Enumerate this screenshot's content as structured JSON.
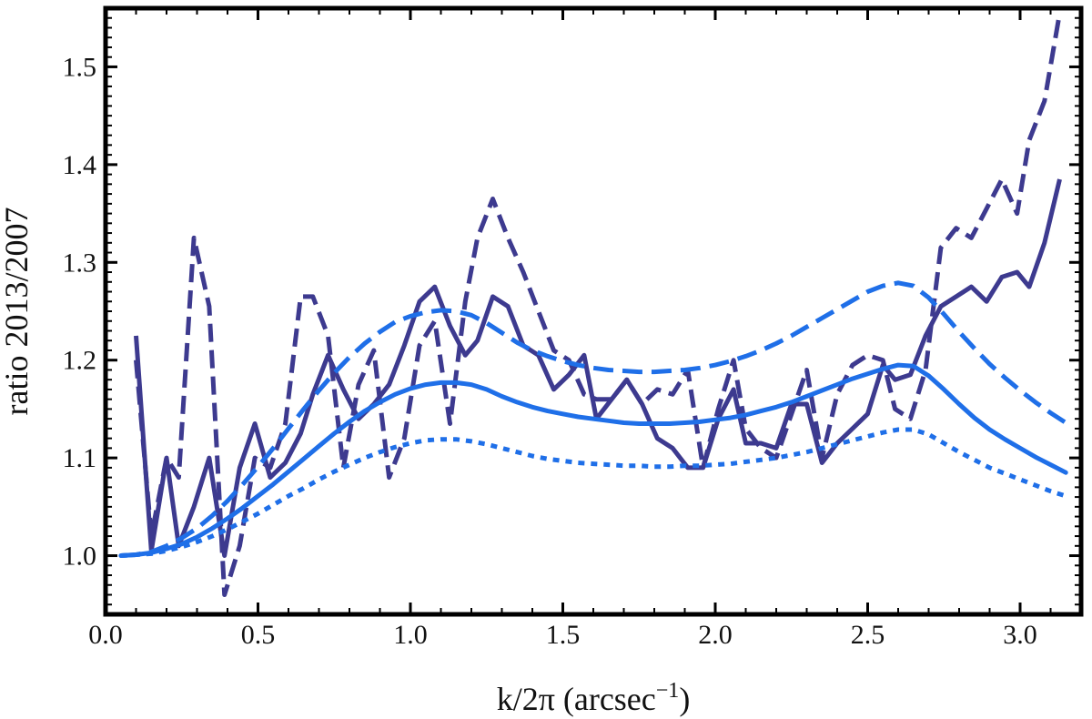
{
  "chart_data": {
    "type": "line",
    "xlabel_main": "k/2π (arcsec",
    "xlabel_sup": "−1",
    "xlabel_close": ")",
    "ylabel": "ratio 2013/2007",
    "xlim": [
      0.0,
      3.2
    ],
    "ylim": [
      0.94,
      1.56
    ],
    "x_ticks": [
      0.0,
      0.5,
      1.0,
      1.5,
      2.0,
      2.5,
      3.0
    ],
    "x_tick_labels": [
      "0.0",
      "0.5",
      "1.0",
      "1.5",
      "2.0",
      "2.5",
      "3.0"
    ],
    "y_ticks": [
      1.0,
      1.1,
      1.2,
      1.3,
      1.4,
      1.5
    ],
    "y_tick_labels": [
      "1.0",
      "1.1",
      "1.2",
      "1.3",
      "1.4",
      "1.5"
    ],
    "grid": false,
    "colors": {
      "data": "#3d3a8f",
      "model": "#1f6fe8",
      "frame": "#000000"
    },
    "series": [
      {
        "style": "data-solid",
        "x": [
          0.1,
          0.15,
          0.2,
          0.24,
          0.29,
          0.34,
          0.39,
          0.44,
          0.49,
          0.54,
          0.59,
          0.64,
          0.68,
          0.73,
          0.78,
          0.83,
          0.88,
          0.93,
          0.98,
          1.03,
          1.08,
          1.13,
          1.18,
          1.22,
          1.27,
          1.32,
          1.37,
          1.42,
          1.47,
          1.52,
          1.57,
          1.61,
          1.66,
          1.71,
          1.76,
          1.81,
          1.86,
          1.91,
          1.96,
          2.01,
          2.06,
          2.1,
          2.15,
          2.2,
          2.25,
          2.3,
          2.35,
          2.4,
          2.45,
          2.5,
          2.55,
          2.59,
          2.64,
          2.69,
          2.74,
          2.79,
          2.84,
          2.89,
          2.94,
          2.99,
          3.03,
          3.08,
          3.13
        ],
        "y": [
          1.225,
          1.005,
          1.1,
          1.01,
          1.05,
          1.1,
          1.0,
          1.09,
          1.135,
          1.08,
          1.095,
          1.125,
          1.165,
          1.205,
          1.17,
          1.14,
          1.155,
          1.175,
          1.215,
          1.26,
          1.275,
          1.235,
          1.205,
          1.22,
          1.265,
          1.255,
          1.215,
          1.205,
          1.17,
          1.185,
          1.205,
          1.14,
          1.16,
          1.18,
          1.155,
          1.12,
          1.11,
          1.09,
          1.09,
          1.14,
          1.17,
          1.115,
          1.115,
          1.11,
          1.155,
          1.155,
          1.095,
          1.115,
          1.13,
          1.145,
          1.195,
          1.18,
          1.185,
          1.225,
          1.255,
          1.265,
          1.275,
          1.26,
          1.285,
          1.29,
          1.275,
          1.32,
          1.385
        ]
      },
      {
        "style": "data-dashed",
        "x": [
          0.1,
          0.15,
          0.2,
          0.24,
          0.29,
          0.34,
          0.39,
          0.44,
          0.49,
          0.54,
          0.59,
          0.64,
          0.68,
          0.73,
          0.78,
          0.83,
          0.88,
          0.93,
          0.98,
          1.03,
          1.08,
          1.13,
          1.18,
          1.22,
          1.27,
          1.32,
          1.37,
          1.42,
          1.47,
          1.52,
          1.57,
          1.61,
          1.66,
          1.71,
          1.76,
          1.81,
          1.86,
          1.91,
          1.96,
          2.01,
          2.06,
          2.1,
          2.15,
          2.2,
          2.25,
          2.3,
          2.35,
          2.4,
          2.45,
          2.5,
          2.55,
          2.59,
          2.64,
          2.69,
          2.74,
          2.79,
          2.84,
          2.89,
          2.94,
          2.99,
          3.03,
          3.08,
          3.13
        ],
        "y": [
          1.2,
          1.02,
          1.1,
          1.08,
          1.325,
          1.255,
          0.96,
          1.01,
          1.1,
          1.09,
          1.135,
          1.265,
          1.265,
          1.225,
          1.09,
          1.175,
          1.21,
          1.08,
          1.12,
          1.215,
          1.24,
          1.135,
          1.26,
          1.325,
          1.365,
          1.325,
          1.29,
          1.25,
          1.21,
          1.2,
          1.165,
          1.16,
          1.16,
          1.18,
          1.155,
          1.17,
          1.165,
          1.19,
          1.09,
          1.15,
          1.2,
          1.13,
          1.11,
          1.1,
          1.145,
          1.19,
          1.1,
          1.165,
          1.195,
          1.205,
          1.2,
          1.15,
          1.14,
          1.19,
          1.315,
          1.335,
          1.325,
          1.355,
          1.385,
          1.35,
          1.425,
          1.465,
          1.555
        ]
      },
      {
        "style": "model-solid",
        "x": [
          0.05,
          0.1,
          0.15,
          0.2,
          0.25,
          0.3,
          0.35,
          0.4,
          0.45,
          0.5,
          0.55,
          0.6,
          0.65,
          0.7,
          0.75,
          0.8,
          0.85,
          0.9,
          0.95,
          1.0,
          1.05,
          1.1,
          1.15,
          1.2,
          1.25,
          1.3,
          1.35,
          1.4,
          1.45,
          1.5,
          1.55,
          1.6,
          1.65,
          1.7,
          1.75,
          1.8,
          1.85,
          1.9,
          1.95,
          2.0,
          2.05,
          2.1,
          2.15,
          2.2,
          2.25,
          2.3,
          2.35,
          2.4,
          2.45,
          2.5,
          2.55,
          2.6,
          2.65,
          2.7,
          2.75,
          2.8,
          2.85,
          2.9,
          2.95,
          3.0,
          3.05,
          3.1,
          3.15
        ],
        "y": [
          1.0,
          1.001,
          1.003,
          1.007,
          1.012,
          1.019,
          1.028,
          1.038,
          1.049,
          1.061,
          1.073,
          1.086,
          1.099,
          1.112,
          1.125,
          1.137,
          1.148,
          1.157,
          1.165,
          1.171,
          1.175,
          1.177,
          1.177,
          1.175,
          1.17,
          1.163,
          1.157,
          1.152,
          1.148,
          1.145,
          1.142,
          1.14,
          1.138,
          1.136,
          1.135,
          1.135,
          1.135,
          1.136,
          1.137,
          1.139,
          1.141,
          1.144,
          1.148,
          1.152,
          1.157,
          1.163,
          1.169,
          1.175,
          1.181,
          1.186,
          1.191,
          1.195,
          1.194,
          1.184,
          1.17,
          1.155,
          1.141,
          1.129,
          1.119,
          1.11,
          1.101,
          1.093,
          1.085
        ]
      },
      {
        "style": "model-dashed",
        "x": [
          0.05,
          0.1,
          0.15,
          0.2,
          0.25,
          0.3,
          0.35,
          0.4,
          0.45,
          0.5,
          0.55,
          0.6,
          0.65,
          0.7,
          0.75,
          0.8,
          0.85,
          0.9,
          0.95,
          1.0,
          1.05,
          1.1,
          1.15,
          1.2,
          1.25,
          1.3,
          1.35,
          1.4,
          1.45,
          1.5,
          1.55,
          1.6,
          1.65,
          1.7,
          1.75,
          1.8,
          1.85,
          1.9,
          1.95,
          2.0,
          2.05,
          2.1,
          2.15,
          2.2,
          2.25,
          2.3,
          2.35,
          2.4,
          2.45,
          2.5,
          2.55,
          2.6,
          2.65,
          2.7,
          2.75,
          2.8,
          2.85,
          2.9,
          2.95,
          3.0,
          3.05,
          3.1,
          3.15
        ],
        "y": [
          1.0,
          1.001,
          1.004,
          1.01,
          1.018,
          1.028,
          1.041,
          1.056,
          1.073,
          1.091,
          1.11,
          1.13,
          1.15,
          1.169,
          1.187,
          1.203,
          1.217,
          1.229,
          1.239,
          1.245,
          1.249,
          1.251,
          1.25,
          1.246,
          1.238,
          1.228,
          1.218,
          1.21,
          1.204,
          1.199,
          1.195,
          1.192,
          1.19,
          1.189,
          1.188,
          1.188,
          1.189,
          1.19,
          1.192,
          1.195,
          1.199,
          1.204,
          1.21,
          1.217,
          1.225,
          1.234,
          1.243,
          1.252,
          1.261,
          1.27,
          1.276,
          1.279,
          1.276,
          1.264,
          1.247,
          1.229,
          1.212,
          1.196,
          1.182,
          1.169,
          1.157,
          1.146,
          1.136
        ]
      },
      {
        "style": "model-dotted",
        "x": [
          0.05,
          0.1,
          0.15,
          0.2,
          0.25,
          0.3,
          0.35,
          0.4,
          0.45,
          0.5,
          0.55,
          0.6,
          0.65,
          0.7,
          0.75,
          0.8,
          0.85,
          0.9,
          0.95,
          1.0,
          1.05,
          1.1,
          1.15,
          1.2,
          1.25,
          1.3,
          1.35,
          1.4,
          1.45,
          1.5,
          1.55,
          1.6,
          1.65,
          1.7,
          1.75,
          1.8,
          1.85,
          1.9,
          1.95,
          2.0,
          2.05,
          2.1,
          2.15,
          2.2,
          2.25,
          2.3,
          2.35,
          2.4,
          2.45,
          2.5,
          2.55,
          2.6,
          2.65,
          2.7,
          2.75,
          2.8,
          2.85,
          2.9,
          2.95,
          3.0,
          3.05,
          3.1,
          3.15
        ],
        "y": [
          1.0,
          1.001,
          1.002,
          1.005,
          1.009,
          1.014,
          1.02,
          1.027,
          1.035,
          1.043,
          1.052,
          1.061,
          1.069,
          1.078,
          1.086,
          1.093,
          1.1,
          1.106,
          1.111,
          1.115,
          1.118,
          1.119,
          1.119,
          1.117,
          1.114,
          1.11,
          1.106,
          1.102,
          1.099,
          1.097,
          1.095,
          1.094,
          1.093,
          1.092,
          1.092,
          1.091,
          1.091,
          1.092,
          1.092,
          1.093,
          1.094,
          1.096,
          1.098,
          1.1,
          1.103,
          1.106,
          1.11,
          1.114,
          1.118,
          1.122,
          1.126,
          1.129,
          1.129,
          1.124,
          1.115,
          1.106,
          1.098,
          1.09,
          1.084,
          1.078,
          1.072,
          1.066,
          1.061
        ]
      }
    ]
  }
}
